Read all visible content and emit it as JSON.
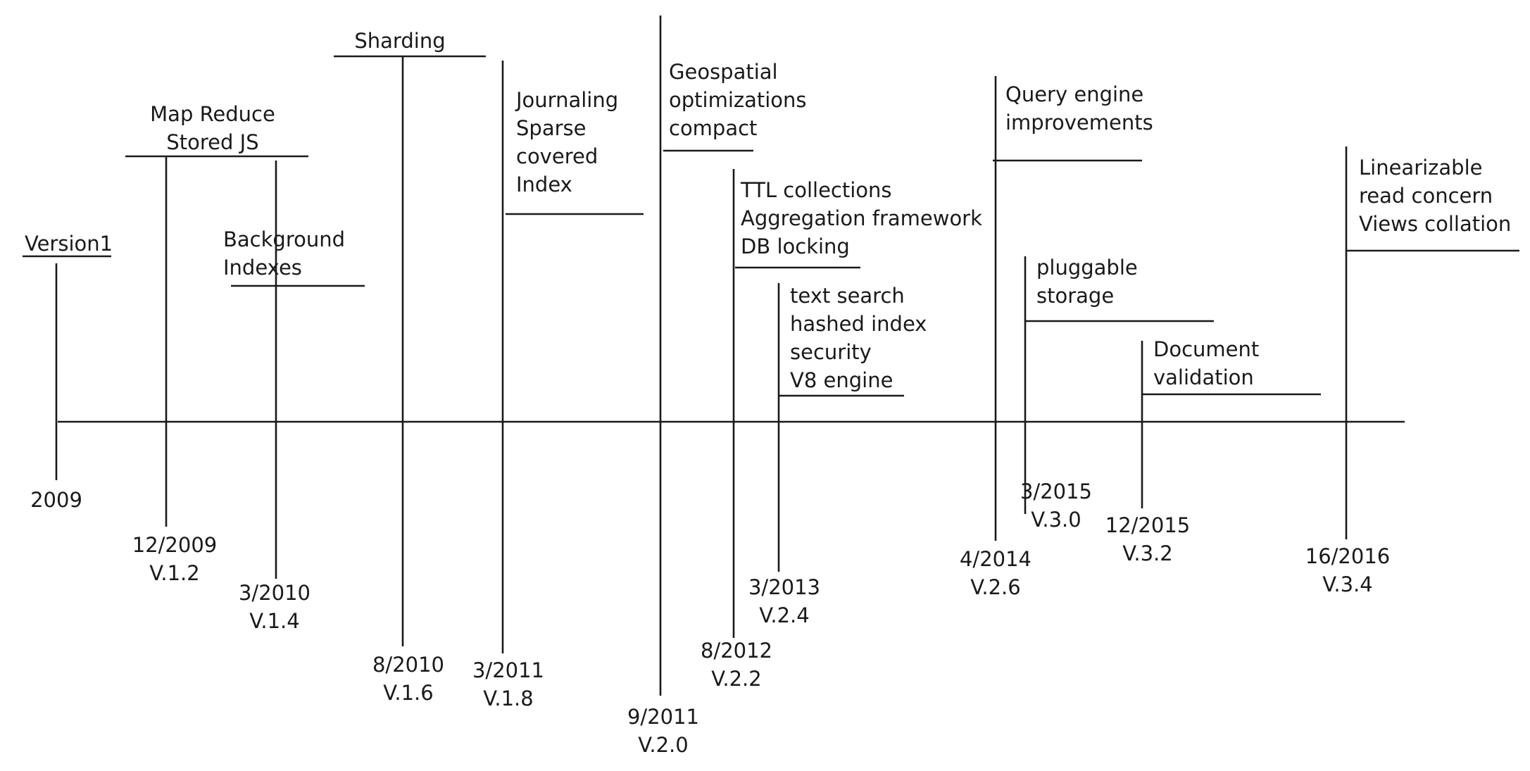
{
  "events": [
    {
      "id": "v1",
      "date": "2009",
      "version": "",
      "features": [
        "Version1"
      ]
    },
    {
      "id": "v1-2",
      "date": "12/2009",
      "version": "V.1.2",
      "features": [
        "Map Reduce",
        "Stored JS"
      ]
    },
    {
      "id": "v1-4",
      "date": "3/2010",
      "version": "V.1.4",
      "features": [
        "Background",
        "Indexes"
      ]
    },
    {
      "id": "v1-6",
      "date": "8/2010",
      "version": "V.1.6",
      "features": [
        "Sharding"
      ]
    },
    {
      "id": "v1-8",
      "date": "3/2011",
      "version": "V.1.8",
      "features": [
        "Journaling",
        "Sparse",
        "covered",
        "Index"
      ]
    },
    {
      "id": "v2-0",
      "date": "9/2011",
      "version": "V.2.0",
      "features": [
        "Geospatial",
        "optimizations",
        "compact"
      ]
    },
    {
      "id": "v2-2",
      "date": "8/2012",
      "version": "V.2.2",
      "features": [
        "TTL collections",
        "Aggregation framework",
        "DB locking"
      ]
    },
    {
      "id": "v2-4",
      "date": "3/2013",
      "version": "V.2.4",
      "features": [
        "text search",
        "hashed index",
        "security",
        "V8 engine"
      ]
    },
    {
      "id": "v2-6",
      "date": "4/2014",
      "version": "V.2.6",
      "features": [
        "Query engine",
        "improvements"
      ]
    },
    {
      "id": "v3-0",
      "date": "3/2015",
      "version": "V.3.0",
      "features": [
        "pluggable",
        "storage"
      ]
    },
    {
      "id": "v3-2",
      "date": "12/2015",
      "version": "V.3.2",
      "features": [
        "Document",
        "validation"
      ]
    },
    {
      "id": "v3-4",
      "date": "16/2016",
      "version": "V.3.4",
      "features": [
        "Linearizable",
        "read concern",
        "Views collation"
      ]
    }
  ]
}
